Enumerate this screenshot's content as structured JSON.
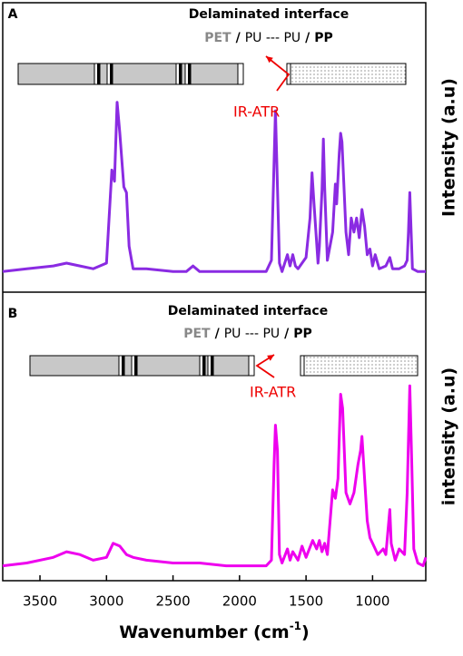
{
  "chart_data": [
    {
      "type": "line",
      "panel_label": "A",
      "annotation_title": "Delaminated interface",
      "layers": [
        "PET",
        "/",
        "PU --- PU",
        "/",
        "PP"
      ],
      "arrow_label": "IR-ATR",
      "ylabel": "Intensity (a.u)",
      "color": "#8a2be2",
      "xlim": [
        3780,
        600
      ],
      "ylim": [
        0,
        1
      ],
      "x": [
        3780,
        3600,
        3400,
        3300,
        3200,
        3100,
        3000,
        2960,
        2940,
        2920,
        2900,
        2870,
        2850,
        2830,
        2800,
        2700,
        2500,
        2400,
        2350,
        2300,
        2100,
        1900,
        1800,
        1760,
        1740,
        1730,
        1720,
        1700,
        1680,
        1640,
        1620,
        1600,
        1580,
        1560,
        1500,
        1470,
        1455,
        1440,
        1410,
        1400,
        1380,
        1370,
        1360,
        1340,
        1300,
        1280,
        1270,
        1250,
        1240,
        1230,
        1200,
        1180,
        1160,
        1140,
        1120,
        1100,
        1080,
        1060,
        1040,
        1020,
        1000,
        980,
        950,
        900,
        870,
        850,
        800,
        760,
        740,
        730,
        720,
        710,
        700,
        660,
        600
      ],
      "values": [
        0.06,
        0.07,
        0.08,
        0.09,
        0.08,
        0.07,
        0.09,
        0.42,
        0.38,
        0.66,
        0.55,
        0.36,
        0.34,
        0.15,
        0.07,
        0.07,
        0.06,
        0.06,
        0.08,
        0.06,
        0.06,
        0.06,
        0.06,
        0.1,
        0.45,
        0.63,
        0.45,
        0.09,
        0.06,
        0.12,
        0.08,
        0.12,
        0.08,
        0.07,
        0.11,
        0.25,
        0.41,
        0.3,
        0.09,
        0.15,
        0.35,
        0.53,
        0.36,
        0.1,
        0.2,
        0.37,
        0.3,
        0.48,
        0.55,
        0.52,
        0.2,
        0.12,
        0.25,
        0.2,
        0.25,
        0.18,
        0.28,
        0.22,
        0.12,
        0.14,
        0.08,
        0.12,
        0.07,
        0.08,
        0.11,
        0.07,
        0.07,
        0.08,
        0.1,
        0.2,
        0.34,
        0.2,
        0.07,
        0.06,
        0.06
      ]
    },
    {
      "type": "line",
      "panel_label": "B",
      "annotation_title": "Delaminated interface",
      "layers": [
        "PET",
        "/",
        "PU --- PU",
        "/",
        "PP"
      ],
      "arrow_label": "IR-ATR",
      "ylabel": "intensity (a.u)",
      "color": "#ee00ee",
      "xlim": [
        3780,
        600
      ],
      "ylim": [
        0,
        1
      ],
      "xticks": [
        3500,
        3000,
        2500,
        2000,
        1500,
        1000
      ],
      "xlabel": [
        "Wavenumber (cm",
        "-1",
        ")"
      ],
      "x": [
        3780,
        3600,
        3400,
        3300,
        3200,
        3100,
        3000,
        2950,
        2900,
        2850,
        2800,
        2700,
        2500,
        2300,
        2100,
        1900,
        1800,
        1760,
        1740,
        1730,
        1715,
        1700,
        1680,
        1640,
        1620,
        1600,
        1560,
        1530,
        1500,
        1450,
        1420,
        1400,
        1380,
        1360,
        1340,
        1300,
        1280,
        1260,
        1240,
        1225,
        1200,
        1170,
        1140,
        1110,
        1090,
        1080,
        1060,
        1040,
        1020,
        1000,
        960,
        920,
        900,
        870,
        860,
        830,
        800,
        760,
        740,
        720,
        705,
        690,
        660,
        620,
        600
      ],
      "values": [
        0.04,
        0.05,
        0.07,
        0.09,
        0.08,
        0.06,
        0.07,
        0.12,
        0.11,
        0.08,
        0.07,
        0.06,
        0.05,
        0.05,
        0.04,
        0.04,
        0.04,
        0.06,
        0.4,
        0.54,
        0.45,
        0.08,
        0.05,
        0.1,
        0.06,
        0.09,
        0.06,
        0.11,
        0.07,
        0.13,
        0.1,
        0.13,
        0.09,
        0.12,
        0.08,
        0.31,
        0.28,
        0.35,
        0.65,
        0.6,
        0.3,
        0.26,
        0.3,
        0.4,
        0.45,
        0.5,
        0.35,
        0.2,
        0.14,
        0.12,
        0.08,
        0.1,
        0.08,
        0.24,
        0.12,
        0.06,
        0.1,
        0.08,
        0.3,
        0.68,
        0.4,
        0.1,
        0.05,
        0.04,
        0.07
      ]
    }
  ]
}
